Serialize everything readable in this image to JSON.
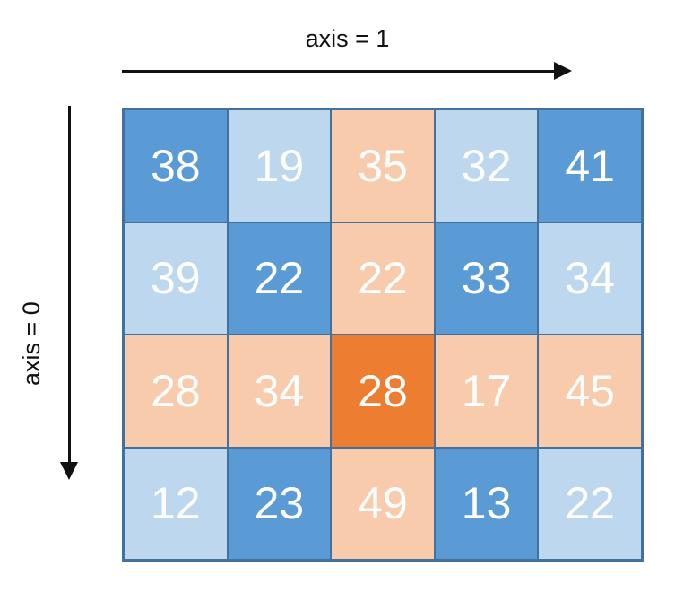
{
  "axis_labels": {
    "horizontal": "axis = 1",
    "vertical": "axis = 0"
  },
  "colors": {
    "dark_blue": "#5b9bd5",
    "light_blue": "#bdd7ee",
    "light_orange": "#f8cbad",
    "dark_orange": "#ed7d31",
    "grid_border": "#41719c"
  },
  "grid": {
    "rows": [
      [
        {
          "value": "38",
          "fill": "dark_blue"
        },
        {
          "value": "19",
          "fill": "light_blue"
        },
        {
          "value": "35",
          "fill": "light_orange"
        },
        {
          "value": "32",
          "fill": "light_blue"
        },
        {
          "value": "41",
          "fill": "dark_blue"
        }
      ],
      [
        {
          "value": "39",
          "fill": "light_blue"
        },
        {
          "value": "22",
          "fill": "dark_blue"
        },
        {
          "value": "22",
          "fill": "light_orange"
        },
        {
          "value": "33",
          "fill": "dark_blue"
        },
        {
          "value": "34",
          "fill": "light_blue"
        }
      ],
      [
        {
          "value": "28",
          "fill": "light_orange"
        },
        {
          "value": "34",
          "fill": "light_orange"
        },
        {
          "value": "28",
          "fill": "dark_orange"
        },
        {
          "value": "17",
          "fill": "light_orange"
        },
        {
          "value": "45",
          "fill": "light_orange"
        }
      ],
      [
        {
          "value": "12",
          "fill": "light_blue"
        },
        {
          "value": "23",
          "fill": "dark_blue"
        },
        {
          "value": "49",
          "fill": "light_orange"
        },
        {
          "value": "13",
          "fill": "dark_blue"
        },
        {
          "value": "22",
          "fill": "light_blue"
        }
      ]
    ]
  }
}
